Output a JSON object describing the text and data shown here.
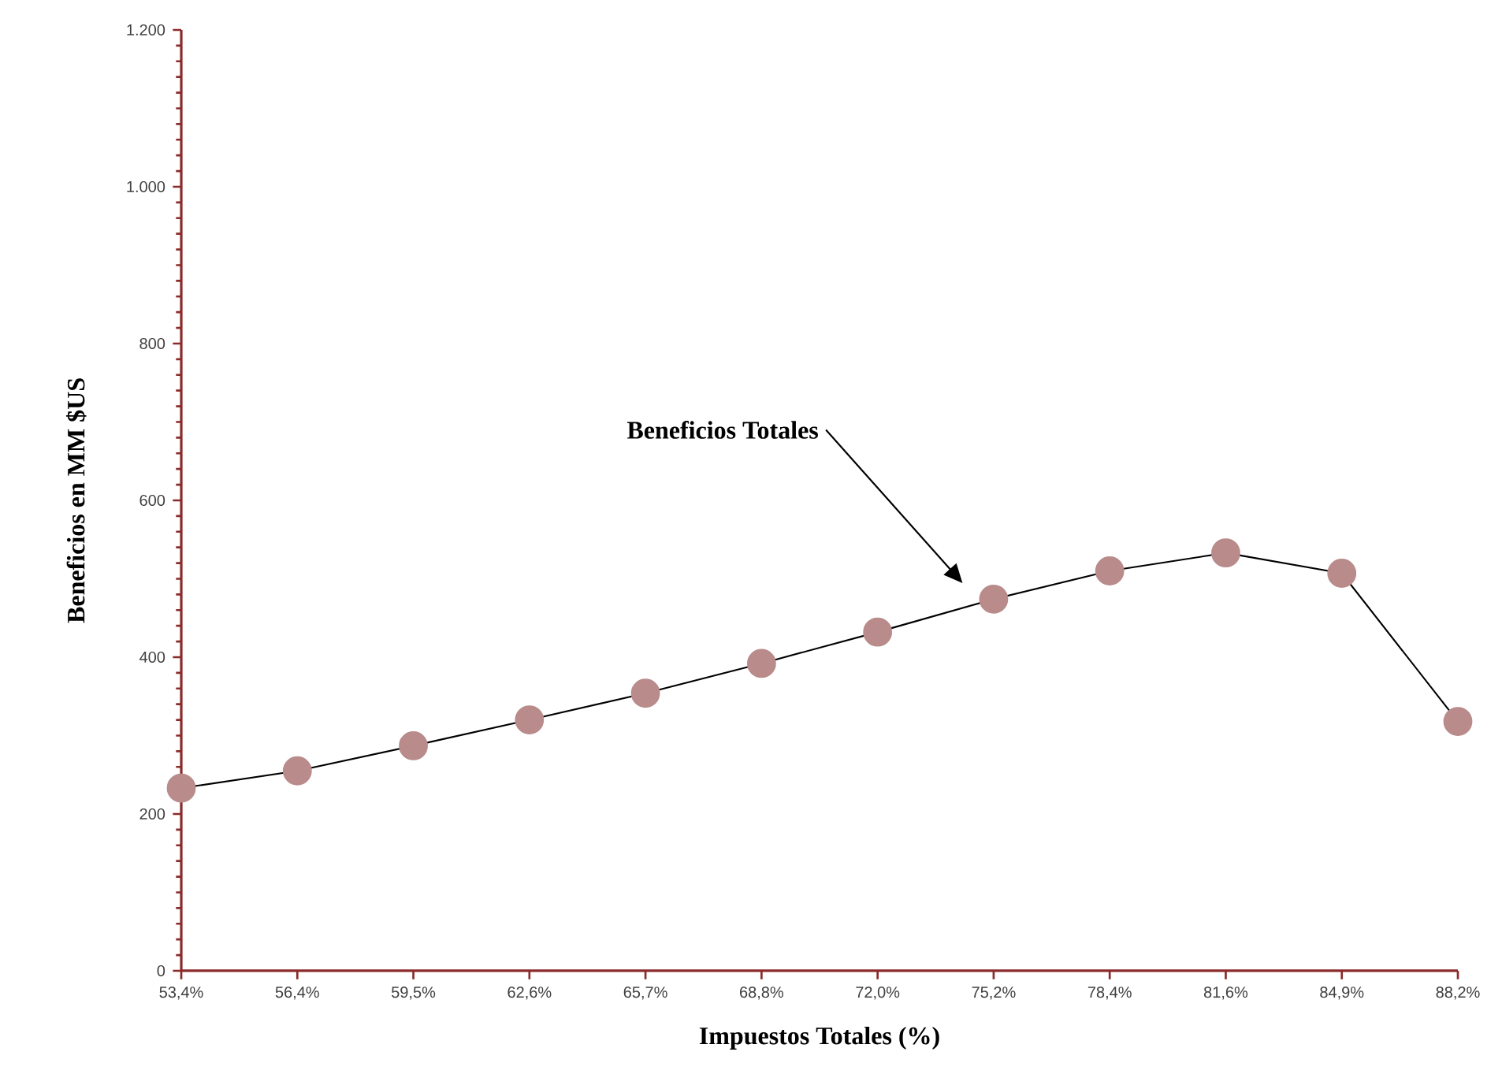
{
  "chart_data": {
    "type": "line",
    "xlabel": "Impuestos Totales (%)",
    "ylabel": "Beneficios en MM $US",
    "categories": [
      "53,4%",
      "56,4%",
      "59,5%",
      "62,6%",
      "65,7%",
      "68,8%",
      "72,0%",
      "75,2%",
      "78,4%",
      "81,6%",
      "84,9%",
      "88,2%"
    ],
    "series": [
      {
        "color": "#b98b8b",
        "values": [
          233,
          255,
          287,
          320,
          354,
          392,
          432,
          474,
          510,
          533,
          507,
          318
        ]
      }
    ],
    "ylim": [
      0,
      1200
    ],
    "yticks": [
      0,
      200,
      400,
      600,
      800,
      {
        "value": 1000,
        "label": "1.000"
      },
      {
        "value": 1200,
        "label": "1.200"
      }
    ],
    "marker": "circle",
    "line_style": "solid",
    "grid": false,
    "annotations": [
      "Beneficios Totales"
    ]
  }
}
